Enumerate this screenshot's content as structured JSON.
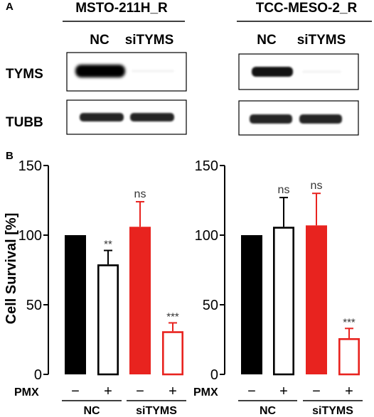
{
  "panel_a": {
    "label": "A",
    "blots": [
      {
        "cell_line": "MSTO-211H_R",
        "lanes": [
          "NC",
          "siTYMS"
        ],
        "rows": [
          {
            "protein": "TYMS",
            "band_intensity": [
              1.0,
              0.03
            ]
          },
          {
            "protein": "TUBB",
            "band_intensity": [
              0.85,
              0.85
            ]
          }
        ]
      },
      {
        "cell_line": "TCC-MESO-2_R",
        "lanes": [
          "NC",
          "siTYMS"
        ],
        "rows": [
          {
            "protein": "TYMS",
            "band_intensity": [
              0.8,
              0.03
            ]
          },
          {
            "protein": "TUBB",
            "band_intensity": [
              0.85,
              0.85
            ]
          }
        ]
      }
    ]
  },
  "panel_b": {
    "label": "B",
    "treatment_label": "PMX",
    "treatment_signs": [
      "−",
      "+",
      "−",
      "+"
    ],
    "groups": [
      "NC",
      "siTYMS"
    ],
    "colors": {
      "nc": "#000000",
      "sitysms": "#e8231f"
    }
  },
  "chart_data": [
    {
      "type": "bar",
      "ylabel": "Cell Survival [%]",
      "ylim": [
        0,
        150
      ],
      "yticks": [
        0,
        50,
        100,
        150
      ],
      "categories": [
        "NC −",
        "NC +",
        "siTYMS −",
        "siTYMS +"
      ],
      "values": [
        100,
        79,
        106,
        31
      ],
      "errors": [
        0,
        10,
        18,
        6
      ],
      "fill": [
        "solid",
        "hollow",
        "solid",
        "hollow"
      ],
      "colors": [
        "#000000",
        "#000000",
        "#e8231f",
        "#e8231f"
      ],
      "significance": [
        "",
        "**",
        "ns",
        "***"
      ]
    },
    {
      "type": "bar",
      "ylabel": "",
      "ylim": [
        0,
        150
      ],
      "yticks": [
        0,
        50,
        100,
        150
      ],
      "categories": [
        "NC −",
        "NC +",
        "siTYMS −",
        "siTYMS +"
      ],
      "values": [
        100,
        106,
        107,
        26
      ],
      "errors": [
        0,
        21,
        23,
        7
      ],
      "fill": [
        "solid",
        "hollow",
        "solid",
        "hollow"
      ],
      "colors": [
        "#000000",
        "#000000",
        "#e8231f",
        "#e8231f"
      ],
      "significance": [
        "",
        "ns",
        "ns",
        "***"
      ]
    }
  ]
}
